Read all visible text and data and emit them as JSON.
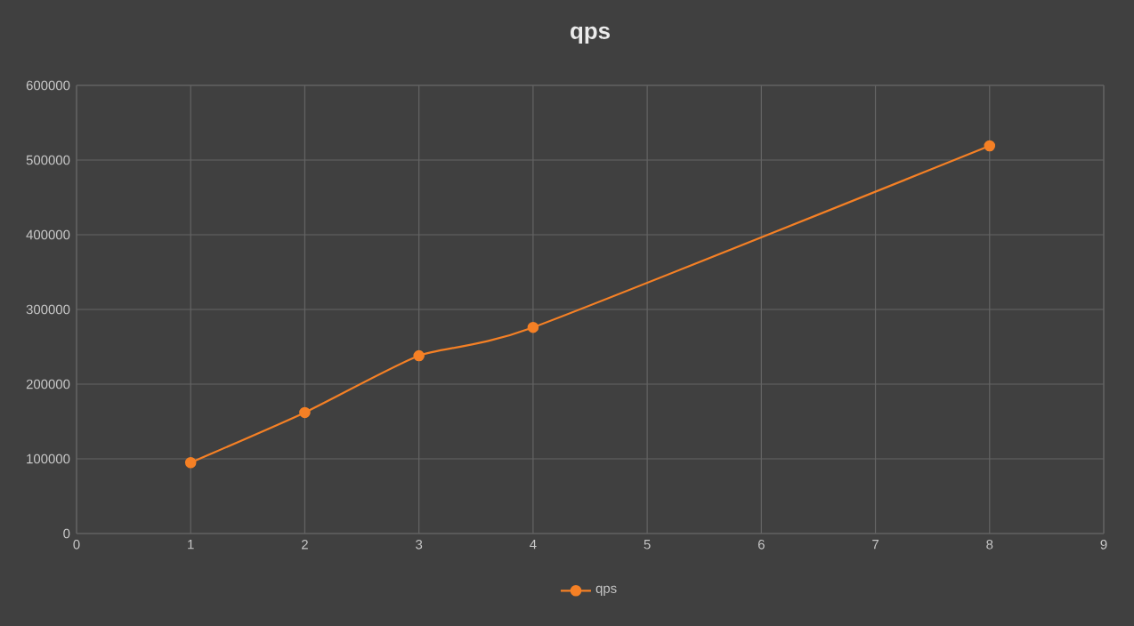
{
  "chart_data": {
    "type": "line",
    "title": "qps",
    "x": [
      1,
      2,
      3,
      4,
      8
    ],
    "series": [
      {
        "name": "qps",
        "color": "#f58025",
        "values": [
          95000,
          162000,
          238000,
          276000,
          519000
        ]
      }
    ],
    "xlim": [
      0,
      9
    ],
    "xticks": [
      0,
      1,
      2,
      3,
      4,
      5,
      6,
      7,
      8,
      9
    ],
    "ylim": [
      0,
      600000
    ],
    "yticks": [
      0,
      100000,
      200000,
      300000,
      400000,
      500000,
      600000
    ],
    "grid": true,
    "legend": "bottom",
    "marker": "circle",
    "line_style": "solid"
  }
}
